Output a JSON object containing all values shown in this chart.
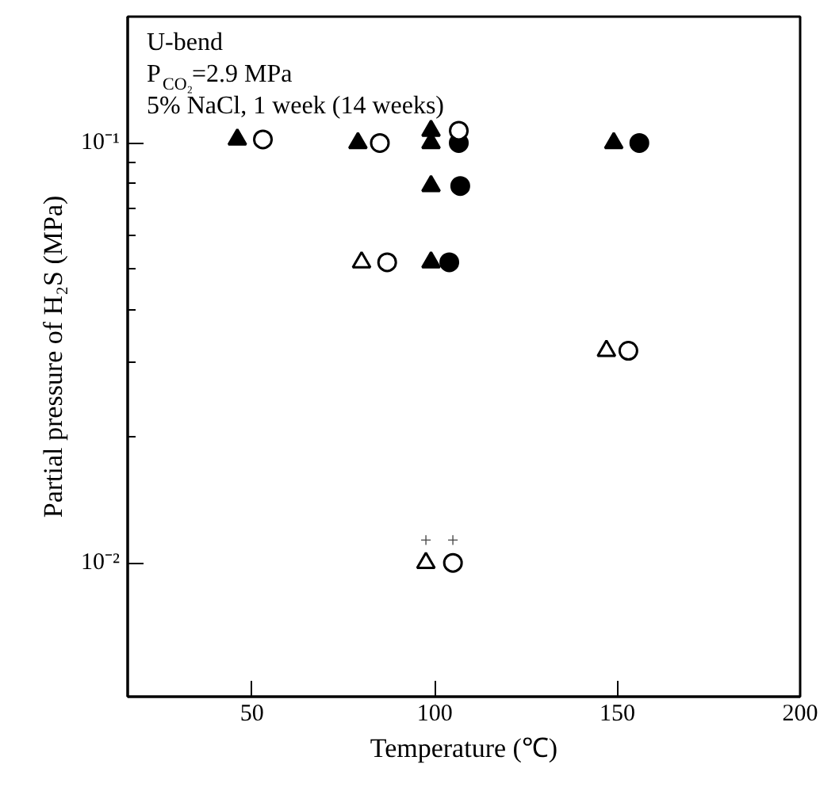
{
  "chart_data": {
    "type": "scatter",
    "xlabel": "Temperature (℃)",
    "ylabel": "Partial pressure of H₂S (MPa)",
    "annotations": [
      "U-bend",
      "P$_{CO₂}$=2.9 MPa",
      "5% NaCl, 1 week (14 weeks)",
      {
        "text": "+",
        "x": 97.6,
        "y": 0.01
      },
      {
        "text": "+",
        "x": 105,
        "y": 0.01
      }
    ],
    "log": "y",
    "grid": false,
    "xlim": [
      16,
      200
    ],
    "xticks": [
      50,
      100,
      150,
      200
    ],
    "ylim": [
      0.0048,
      0.2
    ],
    "yticks": [
      {
        "value": 0.1,
        "label": "10⁻¹"
      },
      {
        "value": 0.01,
        "label": "10⁻²"
      },
      {
        "value": 0.02,
        "label": null
      },
      {
        "value": 0.03,
        "label": null
      },
      {
        "value": 0.04,
        "label": null
      },
      {
        "value": 0.05,
        "label": null
      },
      {
        "value": 0.06,
        "label": null
      },
      {
        "value": 0.07,
        "label": null
      },
      {
        "value": 0.08,
        "label": null
      },
      {
        "value": 0.09,
        "label": null
      }
    ],
    "series": [
      {
        "marker": "triangle",
        "color": "#000000",
        "x": [
          46,
          79,
          99,
          99,
          99,
          99,
          149
        ],
        "values": [
          0.102,
          0.1,
          0.107,
          0.1,
          0.079,
          0.052,
          0.1
        ]
      },
      {
        "marker": "triangle",
        "color": "#ffffff",
        "x": [
          80,
          147,
          97.6
        ],
        "values": [
          0.052,
          0.032,
          0.01
        ]
      },
      {
        "marker": "circle",
        "color": "#000000",
        "x": [
          106.6,
          107,
          104,
          156
        ],
        "values": [
          0.1,
          0.079,
          0.052,
          0.1
        ]
      },
      {
        "marker": "circle",
        "color": "#ffffff",
        "x": [
          53,
          85,
          106.6,
          87,
          153,
          105
        ],
        "values": [
          0.102,
          0.1,
          0.107,
          0.052,
          0.032,
          0.01
        ]
      }
    ]
  }
}
